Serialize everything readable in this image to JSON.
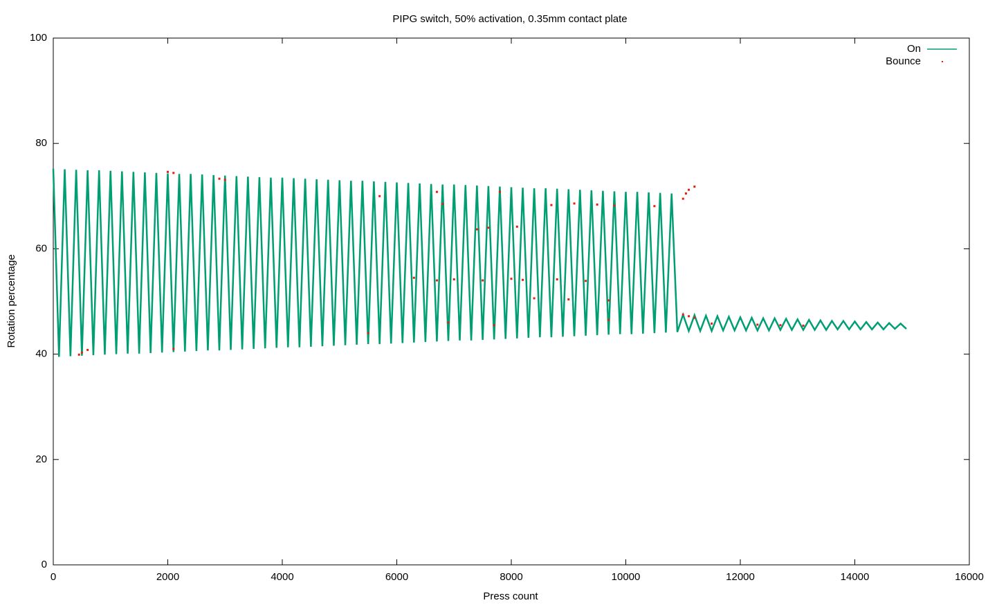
{
  "chart_data": {
    "type": "line",
    "title": "PIPG switch, 50% activation, 0.35mm contact plate",
    "x_label": "Press count",
    "y_label": "Rotation percentage",
    "xlim": [
      0,
      16000
    ],
    "xticks": [
      0,
      2000,
      4000,
      6000,
      8000,
      10000,
      12000,
      14000,
      16000
    ],
    "ylim": [
      0,
      100
    ],
    "yticks": [
      0,
      20,
      40,
      60,
      80,
      100
    ],
    "legend": "top-right",
    "series": [
      {
        "name": "On",
        "type": "line",
        "color": "#009e73",
        "x": [
          0,
          100,
          200,
          300,
          400,
          500,
          600,
          700,
          800,
          900,
          1000,
          1100,
          1200,
          1300,
          1400,
          1500,
          1600,
          1700,
          1800,
          1900,
          2000,
          2100,
          2200,
          2300,
          2400,
          2500,
          2600,
          2700,
          2800,
          2900,
          3000,
          3100,
          3200,
          3300,
          3400,
          3500,
          3600,
          3700,
          3800,
          3900,
          4000,
          4100,
          4200,
          4300,
          4400,
          4500,
          4600,
          4700,
          4800,
          4900,
          5000,
          5100,
          5200,
          5300,
          5400,
          5500,
          5600,
          5700,
          5800,
          5900,
          6000,
          6100,
          6200,
          6300,
          6400,
          6500,
          6600,
          6700,
          6800,
          6900,
          7000,
          7100,
          7200,
          7300,
          7400,
          7500,
          7600,
          7700,
          7800,
          7900,
          8000,
          8100,
          8200,
          8300,
          8400,
          8500,
          8600,
          8700,
          8800,
          8900,
          9000,
          9100,
          9200,
          9300,
          9400,
          9500,
          9600,
          9700,
          9800,
          9900,
          10000,
          10100,
          10200,
          10300,
          10400,
          10500,
          10600,
          10700,
          10800,
          10900,
          11000,
          11100,
          11200,
          11300,
          11400,
          11500,
          11600,
          11700,
          11800,
          11900,
          12000,
          12100,
          12200,
          12300,
          12400,
          12500,
          12600,
          12700,
          12800,
          12900,
          13000,
          13100,
          13200,
          13300,
          13400,
          13500,
          13600,
          13700,
          13800,
          13900,
          14000,
          14100,
          14200,
          14300,
          14400,
          14500,
          14600,
          14700,
          14800,
          14900
        ],
        "values": [
          75.2,
          39.5,
          75.1,
          39.6,
          75.0,
          39.7,
          74.9,
          39.8,
          74.9,
          39.9,
          74.8,
          40.0,
          74.7,
          40.1,
          74.6,
          40.1,
          74.5,
          40.2,
          74.4,
          40.3,
          74.3,
          40.4,
          74.2,
          40.5,
          74.2,
          40.6,
          74.1,
          40.7,
          74.0,
          40.7,
          73.9,
          40.8,
          73.8,
          40.9,
          73.7,
          41.0,
          73.6,
          41.1,
          73.5,
          41.2,
          73.5,
          41.3,
          73.4,
          41.3,
          73.3,
          41.4,
          73.2,
          41.5,
          73.1,
          41.6,
          73.0,
          41.7,
          72.9,
          41.8,
          72.9,
          41.9,
          72.8,
          41.9,
          72.7,
          42.0,
          72.6,
          42.1,
          72.5,
          42.2,
          72.4,
          42.3,
          72.3,
          42.4,
          72.2,
          42.5,
          72.2,
          42.6,
          72.1,
          42.6,
          72.0,
          42.7,
          71.9,
          42.8,
          71.8,
          42.9,
          71.7,
          43.0,
          71.6,
          43.1,
          71.5,
          43.2,
          71.5,
          43.2,
          71.4,
          43.3,
          71.3,
          43.4,
          71.2,
          43.5,
          71.1,
          43.6,
          71.0,
          43.7,
          70.9,
          43.8,
          70.8,
          43.8,
          70.8,
          43.9,
          70.7,
          44.0,
          70.6,
          44.1,
          70.5,
          44.2,
          47.5,
          44.4,
          47.4,
          44.4,
          47.3,
          44.4,
          47.2,
          44.5,
          47.1,
          44.5,
          47.0,
          44.5,
          46.9,
          44.5,
          46.8,
          44.5,
          46.8,
          44.6,
          46.7,
          44.6,
          46.6,
          44.6,
          46.5,
          44.6,
          46.4,
          44.6,
          46.3,
          44.7,
          46.3,
          44.7,
          46.2,
          44.7,
          46.1,
          44.7,
          46.0,
          44.7,
          45.9,
          44.8,
          45.8,
          44.8
        ]
      },
      {
        "name": "Bounce",
        "type": "scatter",
        "color": "#e51e10",
        "x": [
          450,
          500,
          600,
          2000,
          2100,
          2100,
          2900,
          3000,
          5500,
          5700,
          6300,
          6700,
          6700,
          6800,
          6900,
          7000,
          7400,
          7500,
          7600,
          7700,
          7800,
          8000,
          8100,
          8200,
          8400,
          8700,
          8800,
          9000,
          9100,
          9300,
          9500,
          9700,
          9700,
          9800,
          10500,
          11000,
          11050,
          11100,
          11200,
          11000,
          11100,
          11200,
          11500,
          12300,
          12700,
          13100
        ],
        "values": [
          39.9,
          40.3,
          40.8,
          74.6,
          74.4,
          41.0,
          73.3,
          73.1,
          44.0,
          70.0,
          54.5,
          70.8,
          54.0,
          68.5,
          46.0,
          54.2,
          63.7,
          54.0,
          64.0,
          45.5,
          70.8,
          54.3,
          64.2,
          54.1,
          50.6,
          68.3,
          54.2,
          50.4,
          68.6,
          53.9,
          68.4,
          50.2,
          46.5,
          68.2,
          68.1,
          69.5,
          70.5,
          71.2,
          71.8,
          47.5,
          47.2,
          46.9,
          45.8,
          45.6,
          45.5,
          45.4
        ]
      }
    ]
  }
}
